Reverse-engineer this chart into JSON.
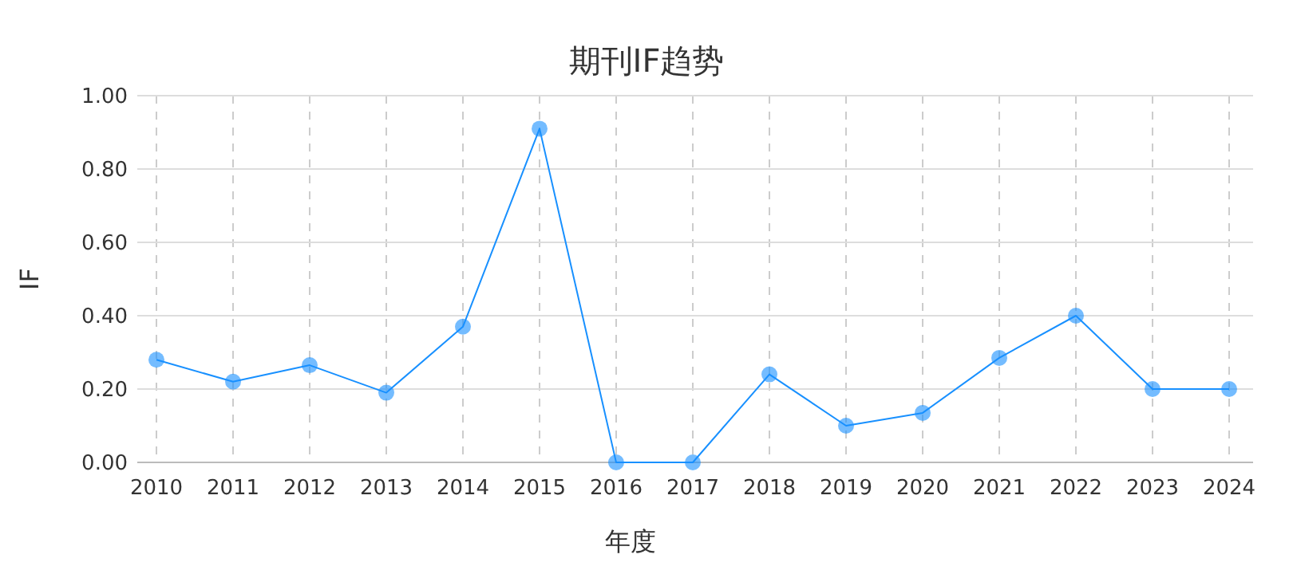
{
  "chart_data": {
    "type": "line",
    "title": "期刊IF趋势",
    "xlabel": "年度",
    "ylabel": "IF",
    "categories": [
      "2010",
      "2011",
      "2012",
      "2013",
      "2014",
      "2015",
      "2016",
      "2017",
      "2018",
      "2019",
      "2020",
      "2021",
      "2022",
      "2023",
      "2024"
    ],
    "series": [
      {
        "color": "#1890ff",
        "values": [
          0.28,
          0.22,
          0.265,
          0.19,
          0.37,
          0.91,
          0,
          0,
          0.24,
          0.1,
          0.135,
          0.285,
          0.4,
          0.2,
          0.2
        ]
      }
    ],
    "ylim": [
      0,
      1
    ],
    "yticks": [
      {
        "value": 0,
        "label": "0.00"
      },
      {
        "value": 0.2,
        "label": "0.20"
      },
      {
        "value": 0.4,
        "label": "0.40"
      },
      {
        "value": 0.6,
        "label": "0.60"
      },
      {
        "value": 0.8,
        "label": "0.80"
      },
      {
        "value": 1,
        "label": "1.00"
      }
    ],
    "grid": true,
    "marker": "circle",
    "line_style": "solid"
  }
}
